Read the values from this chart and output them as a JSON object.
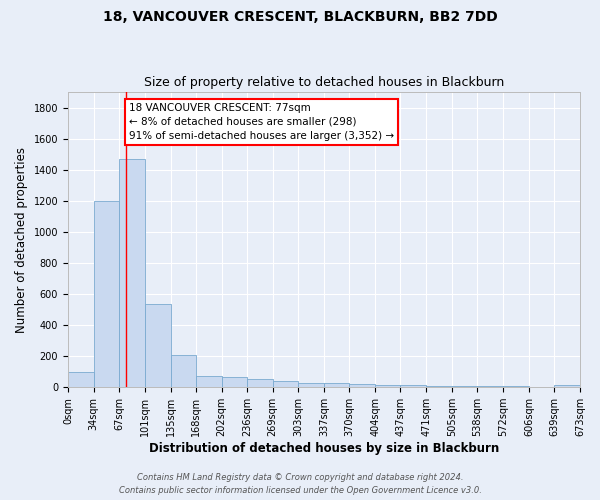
{
  "title": "18, VANCOUVER CRESCENT, BLACKBURN, BB2 7DD",
  "subtitle": "Size of property relative to detached houses in Blackburn",
  "xlabel": "Distribution of detached houses by size in Blackburn",
  "ylabel": "Number of detached properties",
  "bar_color": "#c9d9f0",
  "bar_edge_color": "#7aaad0",
  "background_color": "#e8eef8",
  "bin_edges": [
    0,
    34,
    67,
    101,
    135,
    168,
    202,
    236,
    269,
    303,
    337,
    370,
    404,
    437,
    471,
    505,
    538,
    572,
    606,
    639,
    673
  ],
  "bar_heights": [
    95,
    1200,
    1470,
    535,
    205,
    70,
    65,
    50,
    38,
    30,
    25,
    20,
    15,
    12,
    10,
    8,
    6,
    5,
    4,
    15
  ],
  "tick_labels": [
    "0sqm",
    "34sqm",
    "67sqm",
    "101sqm",
    "135sqm",
    "168sqm",
    "202sqm",
    "236sqm",
    "269sqm",
    "303sqm",
    "337sqm",
    "370sqm",
    "404sqm",
    "437sqm",
    "471sqm",
    "505sqm",
    "538sqm",
    "572sqm",
    "606sqm",
    "639sqm",
    "673sqm"
  ],
  "ylim": [
    0,
    1900
  ],
  "yticks": [
    0,
    200,
    400,
    600,
    800,
    1000,
    1200,
    1400,
    1600,
    1800
  ],
  "red_line_x": 77,
  "annotation_line1": "18 VANCOUVER CRESCENT: 77sqm",
  "annotation_line2": "← 8% of detached houses are smaller (298)",
  "annotation_line3": "91% of semi-detached houses are larger (3,352) →",
  "annotation_box_color": "white",
  "annotation_box_edge": "red",
  "footer_line1": "Contains HM Land Registry data © Crown copyright and database right 2024.",
  "footer_line2": "Contains public sector information licensed under the Open Government Licence v3.0.",
  "grid_color": "#ffffff",
  "title_fontsize": 10,
  "subtitle_fontsize": 9,
  "axis_label_fontsize": 8.5,
  "tick_fontsize": 7,
  "annotation_fontsize": 7.5,
  "footer_fontsize": 6
}
